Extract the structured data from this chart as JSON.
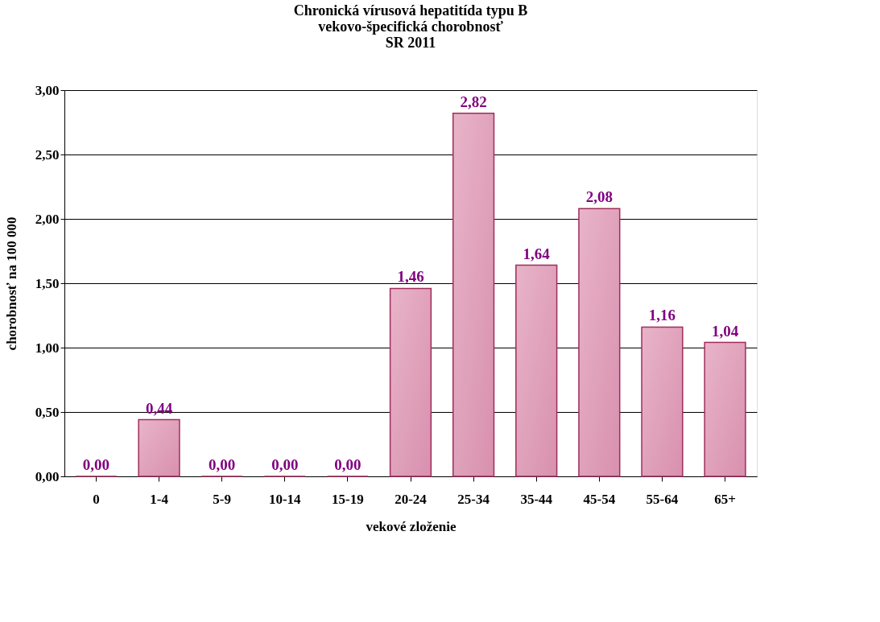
{
  "chart_data": {
    "type": "bar",
    "title": "Chronická vírusová hepatitída typu B\nvekovo-špecifická chorobnosť\nSR 2011",
    "xlabel": "vekové zloženie",
    "ylabel": "chorobnosť na 100 000",
    "categories": [
      "0",
      "1-4",
      "5-9",
      "10-14",
      "15-19",
      "20-24",
      "25-34",
      "35-44",
      "45-54",
      "55-64",
      "65+"
    ],
    "values": [
      0.0,
      0.44,
      0.0,
      0.0,
      0.0,
      1.46,
      2.82,
      1.64,
      2.08,
      1.16,
      1.04
    ],
    "color": "#a02c5c",
    "value_labels": [
      "0,00",
      "0,44",
      "0,00",
      "0,00",
      "0,00",
      "1,46",
      "2,82",
      "1,64",
      "2,08",
      "1,16",
      "1,04"
    ],
    "ylim": [
      0,
      3
    ],
    "yticks": [
      {
        "value": 0,
        "label": "0,00"
      },
      {
        "value": 0.5,
        "label": "0,50"
      },
      {
        "value": 1,
        "label": "1,00"
      },
      {
        "value": 1.5,
        "label": "1,50"
      },
      {
        "value": 2,
        "label": "2,00"
      },
      {
        "value": 2.5,
        "label": "2,50"
      },
      {
        "value": 3,
        "label": "3,00"
      }
    ],
    "grid": "y"
  }
}
